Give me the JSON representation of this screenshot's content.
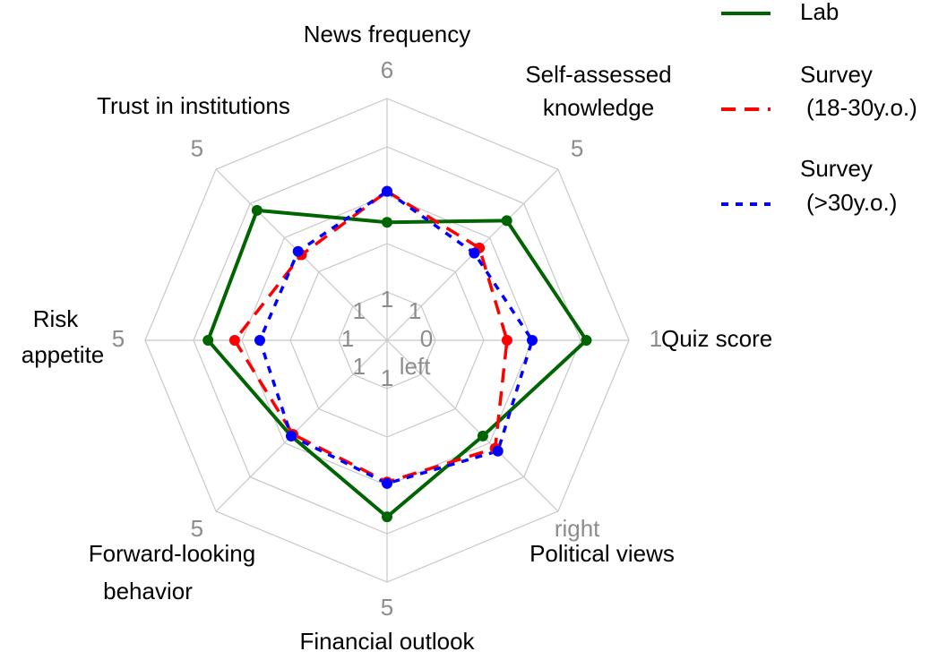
{
  "chart_data": {
    "type": "radar",
    "axes": [
      {
        "label": [
          "News frequency"
        ],
        "min": 1,
        "max": 6
      },
      {
        "label": [
          "Self-assessed",
          "knowledge"
        ],
        "min": 1,
        "max": 5
      },
      {
        "label": [
          "Quiz score"
        ],
        "min": 0,
        "max": 1
      },
      {
        "label": [
          "Political views"
        ],
        "min": {
          "value": 0,
          "label": "left"
        },
        "max": {
          "value": 1,
          "label": "right"
        }
      },
      {
        "label": [
          "Financial outlook"
        ],
        "min": 1,
        "max": 5
      },
      {
        "label": [
          "Forward-looking",
          "behavior"
        ],
        "min": 1,
        "max": 5
      },
      {
        "label": [
          "Risk",
          "appetite"
        ],
        "min": 1,
        "max": 5
      },
      {
        "label": [
          "Trust in institutions"
        ],
        "min": 1,
        "max": 5
      }
    ],
    "series": [
      {
        "name": [
          "Lab"
        ],
        "color": "#006400",
        "style": "solid",
        "values": [
          2.8,
          3.5,
          0.78,
          0.45,
          3.65,
          2.8,
          3.7,
          3.8
        ]
      },
      {
        "name": [
          "Survey",
          "(18-30y.o.)"
        ],
        "color": "#ff0000",
        "style": "dashed",
        "values": [
          3.6,
          2.7,
          0.37,
          0.54,
          2.93,
          2.75,
          3.15,
          2.5
        ]
      },
      {
        "name": [
          "Survey",
          "(>30y.o.)"
        ],
        "color": "#0000ff",
        "style": "dotted",
        "values": [
          3.6,
          2.55,
          0.5,
          0.56,
          2.96,
          2.8,
          2.63,
          2.6
        ]
      }
    ]
  }
}
